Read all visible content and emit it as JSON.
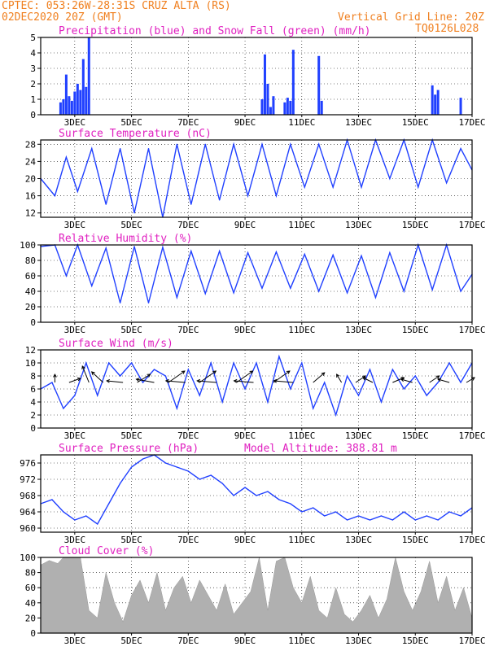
{
  "header": {
    "line1": "CPTEC:  053:26W-28:31S  CRUZ ALTA (RS)",
    "line2": "02DEC2020 20Z (GMT)",
    "grid_note": "Vertical Grid Line: 20Z",
    "run_id": "TQ0126L028"
  },
  "colors": {
    "orange": "#f08020",
    "magenta": "#e020c0",
    "blue": "#2040ff",
    "green": "#20c020",
    "gray": "#b0b0b0",
    "axis": "#000000"
  },
  "x_ticks": [
    "3DEC",
    "5DEC",
    "7DEC",
    "9DEC",
    "11DEC",
    "13DEC",
    "15DEC",
    "17DEC"
  ],
  "chart_data": [
    {
      "id": "precip",
      "type": "bar",
      "title": "Precipitation (blue) and Snow Fall (green) (mm/h)",
      "ylim": [
        0,
        5
      ],
      "yticks": [
        "0",
        "1",
        "2",
        "3",
        "4",
        "5"
      ],
      "series": [
        {
          "name": "Precipitation",
          "color": "#2040ff",
          "x": [
            2.5,
            2.6,
            2.7,
            2.8,
            2.9,
            3.0,
            3.1,
            3.2,
            3.3,
            3.4,
            3.5,
            9.6,
            9.7,
            9.8,
            9.9,
            10.0,
            10.4,
            10.5,
            10.6,
            10.7,
            11.6,
            11.7,
            15.6,
            15.7,
            15.8,
            16.6
          ],
          "values": [
            0.8,
            1.0,
            2.6,
            1.2,
            0.9,
            1.5,
            2.0,
            1.6,
            3.6,
            1.8,
            5.0,
            1.0,
            3.9,
            2.0,
            0.5,
            1.2,
            0.8,
            1.1,
            0.9,
            4.2,
            3.8,
            0.9,
            1.9,
            1.3,
            1.6,
            1.1
          ]
        },
        {
          "name": "Snow Fall",
          "color": "#20c020",
          "x": [],
          "values": []
        }
      ]
    },
    {
      "id": "temp",
      "type": "line",
      "title": "Surface Temperature (nC)",
      "ylim": [
        11,
        29
      ],
      "yticks": [
        "12",
        "16",
        "20",
        "24",
        "28"
      ],
      "series": [
        {
          "name": "Temperature",
          "color": "#2040ff",
          "x": [
            1.8,
            2.3,
            2.7,
            3.1,
            3.6,
            4.1,
            4.6,
            5.1,
            5.6,
            6.1,
            6.6,
            7.1,
            7.6,
            8.1,
            8.6,
            9.1,
            9.6,
            10.1,
            10.6,
            11.1,
            11.6,
            12.1,
            12.6,
            13.1,
            13.6,
            14.1,
            14.6,
            15.1,
            15.6,
            16.1,
            16.6,
            17.0
          ],
          "values": [
            20,
            16,
            25,
            17,
            27,
            14,
            27,
            12,
            27,
            11,
            28,
            14,
            28,
            15,
            28,
            16,
            28,
            16,
            28,
            18,
            28,
            18,
            29,
            18,
            29,
            20,
            29,
            18,
            29,
            19,
            27,
            22
          ]
        }
      ]
    },
    {
      "id": "rh",
      "type": "line",
      "title": "Relative Humidity (%)",
      "ylim": [
        0,
        100
      ],
      "yticks": [
        "0",
        "20",
        "40",
        "60",
        "80",
        "100"
      ],
      "series": [
        {
          "name": "Relative Humidity",
          "color": "#2040ff",
          "x": [
            1.8,
            2.3,
            2.7,
            3.1,
            3.6,
            4.1,
            4.6,
            5.1,
            5.6,
            6.1,
            6.6,
            7.1,
            7.6,
            8.1,
            8.6,
            9.1,
            9.6,
            10.1,
            10.6,
            11.1,
            11.6,
            12.1,
            12.6,
            13.1,
            13.6,
            14.1,
            14.6,
            15.1,
            15.6,
            16.1,
            16.6,
            17.0
          ],
          "values": [
            98,
            100,
            60,
            100,
            47,
            96,
            25,
            98,
            25,
            97,
            32,
            92,
            37,
            92,
            38,
            90,
            44,
            91,
            44,
            88,
            40,
            87,
            38,
            86,
            32,
            90,
            40,
            100,
            42,
            100,
            40,
            62
          ]
        }
      ]
    },
    {
      "id": "wind",
      "type": "line",
      "title": "Surface Wind (m/s)",
      "ylim": [
        0,
        12
      ],
      "yticks": [
        "0",
        "2",
        "4",
        "6",
        "8",
        "10",
        "12"
      ],
      "series": [
        {
          "name": "Wind speed",
          "color": "#2040ff",
          "x": [
            1.8,
            2.2,
            2.6,
            3.0,
            3.4,
            3.8,
            4.2,
            4.6,
            5.0,
            5.4,
            5.8,
            6.2,
            6.6,
            7.0,
            7.4,
            7.8,
            8.2,
            8.6,
            9.0,
            9.4,
            9.8,
            10.2,
            10.6,
            11.0,
            11.4,
            11.8,
            12.2,
            12.6,
            13.0,
            13.4,
            13.8,
            14.2,
            14.6,
            15.0,
            15.4,
            15.8,
            16.2,
            16.6,
            17.0
          ],
          "values": [
            6,
            7,
            3,
            5,
            10,
            5,
            10,
            8,
            10,
            7,
            9,
            8,
            3,
            9,
            5,
            10,
            4,
            10,
            6,
            10,
            4,
            11,
            6,
            10,
            3,
            7,
            2,
            8,
            5,
            9,
            4,
            9,
            6,
            8,
            5,
            7,
            10,
            7,
            10
          ]
        }
      ],
      "arrows": [
        {
          "x": 2.3,
          "dx": 0,
          "dy": -10
        },
        {
          "x": 2.8,
          "dx": 14,
          "dy": -5
        },
        {
          "x": 3.5,
          "dx": -8,
          "dy": -20
        },
        {
          "x": 4.0,
          "dx": -14,
          "dy": -13
        },
        {
          "x": 4.7,
          "dx": -20,
          "dy": -2
        },
        {
          "x": 5.2,
          "dx": 16,
          "dy": -10
        },
        {
          "x": 5.8,
          "dx": -22,
          "dy": -4
        },
        {
          "x": 6.3,
          "dx": 20,
          "dy": -14
        },
        {
          "x": 6.9,
          "dx": -24,
          "dy": -2
        },
        {
          "x": 7.4,
          "dx": 20,
          "dy": -14
        },
        {
          "x": 8.0,
          "dx": -24,
          "dy": -2
        },
        {
          "x": 8.7,
          "dx": 20,
          "dy": -14
        },
        {
          "x": 9.3,
          "dx": -24,
          "dy": -2
        },
        {
          "x": 10.0,
          "dx": 20,
          "dy": -14
        },
        {
          "x": 10.7,
          "dx": -24,
          "dy": -2
        },
        {
          "x": 11.4,
          "dx": 14,
          "dy": -12
        },
        {
          "x": 12.4,
          "dx": -6,
          "dy": -10
        },
        {
          "x": 12.9,
          "dx": 12,
          "dy": -8
        },
        {
          "x": 13.5,
          "dx": -12,
          "dy": -6
        },
        {
          "x": 14.2,
          "dx": 14,
          "dy": -6
        },
        {
          "x": 14.9,
          "dx": -14,
          "dy": -4
        },
        {
          "x": 15.5,
          "dx": 12,
          "dy": -8
        },
        {
          "x": 16.2,
          "dx": -14,
          "dy": -4
        },
        {
          "x": 16.8,
          "dx": 10,
          "dy": -6
        }
      ]
    },
    {
      "id": "pressure",
      "type": "line",
      "title": "Surface Pressure (hPa)",
      "subtitle": "Model Altitude: 388.81 m",
      "ylim": [
        959,
        978
      ],
      "yticks": [
        "960",
        "964",
        "968",
        "972",
        "976"
      ],
      "series": [
        {
          "name": "Pressure",
          "color": "#2040ff",
          "x": [
            1.8,
            2.2,
            2.6,
            3.0,
            3.4,
            3.8,
            4.2,
            4.6,
            5.0,
            5.4,
            5.8,
            6.2,
            6.6,
            7.0,
            7.4,
            7.8,
            8.2,
            8.6,
            9.0,
            9.4,
            9.8,
            10.2,
            10.6,
            11.0,
            11.4,
            11.8,
            12.2,
            12.6,
            13.0,
            13.4,
            13.8,
            14.2,
            14.6,
            15.0,
            15.4,
            15.8,
            16.2,
            16.6,
            17.0
          ],
          "values": [
            966,
            967,
            964,
            962,
            963,
            961,
            966,
            971,
            975,
            977,
            978,
            976,
            975,
            974,
            972,
            973,
            971,
            968,
            970,
            968,
            969,
            967,
            966,
            964,
            965,
            963,
            964,
            962,
            963,
            962,
            963,
            962,
            964,
            962,
            963,
            962,
            964,
            963,
            965
          ]
        }
      ]
    },
    {
      "id": "cloud",
      "type": "area",
      "title": "Cloud Cover (%)",
      "ylim": [
        0,
        100
      ],
      "yticks": [
        "0",
        "20",
        "40",
        "60",
        "80",
        "100"
      ],
      "series": [
        {
          "name": "Cloud Cover",
          "color": "#b0b0b0",
          "x": [
            1.8,
            2.1,
            2.4,
            2.6,
            2.9,
            3.2,
            3.5,
            3.8,
            4.1,
            4.4,
            4.7,
            5.0,
            5.3,
            5.6,
            5.9,
            6.2,
            6.5,
            6.8,
            7.1,
            7.4,
            7.7,
            8.0,
            8.3,
            8.6,
            8.9,
            9.2,
            9.5,
            9.8,
            10.1,
            10.4,
            10.7,
            11.0,
            11.3,
            11.6,
            11.9,
            12.2,
            12.5,
            12.8,
            13.1,
            13.4,
            13.7,
            14.0,
            14.3,
            14.6,
            14.9,
            15.2,
            15.5,
            15.8,
            16.1,
            16.4,
            16.7,
            17.0
          ],
          "values": [
            90,
            96,
            92,
            100,
            100,
            100,
            30,
            20,
            80,
            40,
            15,
            50,
            70,
            40,
            80,
            30,
            60,
            75,
            40,
            70,
            50,
            30,
            65,
            25,
            40,
            55,
            100,
            30,
            95,
            100,
            60,
            40,
            75,
            30,
            20,
            60,
            25,
            15,
            30,
            50,
            20,
            45,
            100,
            55,
            30,
            55,
            95,
            40,
            75,
            30,
            60,
            20
          ]
        }
      ]
    }
  ]
}
